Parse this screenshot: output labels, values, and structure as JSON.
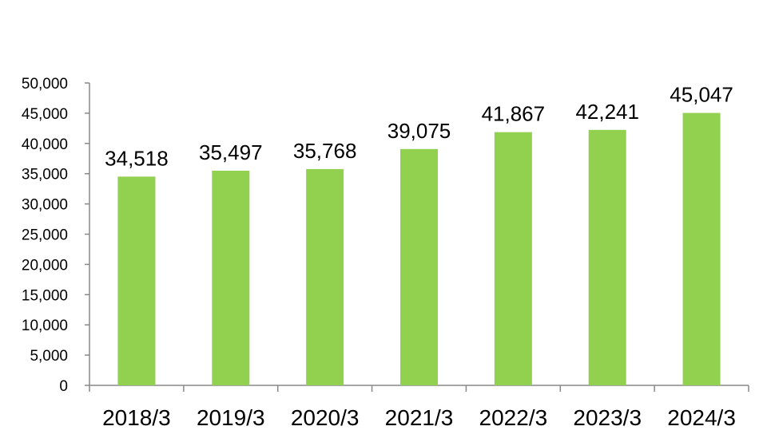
{
  "chart_data": {
    "type": "bar",
    "categories": [
      "2018/3",
      "2019/3",
      "2020/3",
      "2021/3",
      "2022/3",
      "2023/3",
      "2024/3"
    ],
    "values": [
      34518,
      35497,
      35768,
      39075,
      41867,
      42241,
      45047
    ],
    "data_labels": [
      "34,518",
      "35,497",
      "35,768",
      "39,075",
      "41,867",
      "42,241",
      "45,047"
    ],
    "y_ticks": [
      "0",
      "5,000",
      "10,000",
      "15,000",
      "20,000",
      "25,000",
      "30,000",
      "35,000",
      "40,000",
      "45,000",
      "50,000"
    ],
    "ylim": [
      0,
      50000
    ],
    "grid": false,
    "legend": "none",
    "bar_color": "#92d050",
    "axis_color": "#888888"
  }
}
